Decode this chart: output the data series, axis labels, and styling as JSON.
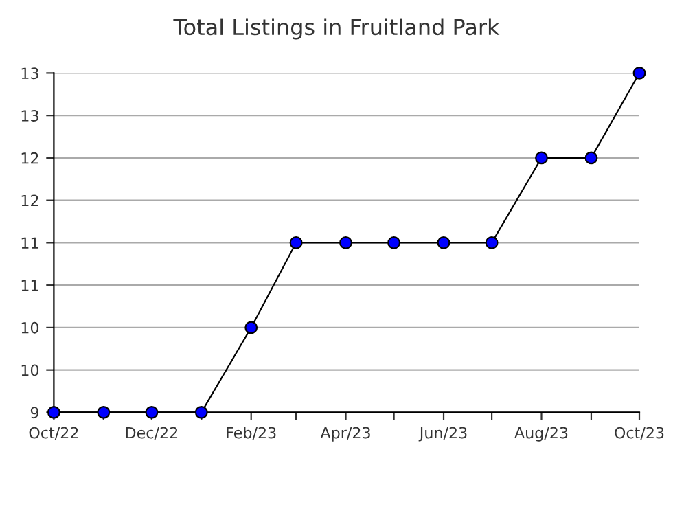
{
  "chart_data": {
    "type": "line",
    "title": "Total Listings in Fruitland Park",
    "x": [
      "2022-10",
      "2022-11",
      "2022-12",
      "2023-01",
      "2023-02",
      "2023-03",
      "2023-04",
      "2023-05",
      "2023-06",
      "2023-07",
      "2023-08",
      "2023-09",
      "2023-10"
    ],
    "series": [
      {
        "color": "#0000ff",
        "values": [
          9,
          9,
          9,
          9,
          10,
          11,
          11,
          11,
          11,
          11,
          12,
          12,
          13
        ]
      }
    ],
    "xlim": [
      "2022-10",
      "2023-10"
    ],
    "xticks": [
      {
        "value": "2022-10",
        "label": "Oct/22"
      },
      {
        "value": "2022-11",
        "label": null
      },
      {
        "value": "2022-12",
        "label": "Dec/22"
      },
      {
        "value": "2023-01",
        "label": null
      },
      {
        "value": "2023-02",
        "label": "Feb/23"
      },
      {
        "value": "2023-03",
        "label": null
      },
      {
        "value": "2023-04",
        "label": "Apr/23"
      },
      {
        "value": "2023-05",
        "label": null
      },
      {
        "value": "2023-06",
        "label": "Jun/23"
      },
      {
        "value": "2023-07",
        "label": null
      },
      {
        "value": "2023-08",
        "label": "Aug/23"
      },
      {
        "value": "2023-09",
        "label": null
      },
      {
        "value": "2023-10",
        "label": "Oct/23"
      }
    ],
    "ylim": [
      9,
      13
    ],
    "yticks": [
      9,
      {
        "value": 9.5,
        "label": "10"
      },
      10,
      {
        "value": 10.5,
        "label": "11"
      },
      11,
      {
        "value": 11.5,
        "label": "12"
      },
      12,
      {
        "value": 12.5,
        "label": "13"
      },
      13
    ],
    "grid": "y",
    "marker": "circle",
    "line_style": "solid",
    "legend": false
  }
}
